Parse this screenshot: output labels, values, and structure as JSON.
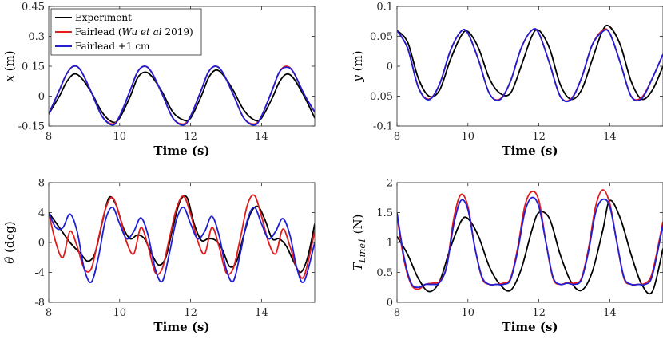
{
  "chart_data": [
    {
      "id": "x",
      "type": "line",
      "xlabel": "Time (s)",
      "ylabel_symbol": "x",
      "ylabel_unit": "(m)",
      "xlim": [
        8,
        15.5
      ],
      "ylim": [
        -0.15,
        0.45
      ],
      "xticks": [
        8,
        10,
        12,
        14
      ],
      "yticks": [
        -0.15,
        0,
        0.15,
        0.3,
        0.45
      ],
      "ytick_labels": [
        "-0.15",
        "0",
        "0.15",
        "0.3",
        "0.45"
      ],
      "series": [
        {
          "name": "Experiment",
          "color": "#000000",
          "x": [
            8.0,
            8.3,
            8.5,
            8.7,
            8.9,
            9.2,
            9.5,
            9.8,
            10.0,
            10.3,
            10.5,
            10.7,
            10.9,
            11.2,
            11.5,
            11.8,
            12.0,
            12.3,
            12.5,
            12.7,
            12.9,
            13.2,
            13.5,
            13.8,
            14.0,
            14.3,
            14.5,
            14.7,
            14.9,
            15.2,
            15.5
          ],
          "y": [
            -0.09,
            0.0,
            0.07,
            0.11,
            0.095,
            0.02,
            -0.08,
            -0.13,
            -0.11,
            0.0,
            0.09,
            0.12,
            0.1,
            0.02,
            -0.08,
            -0.12,
            -0.11,
            0.0,
            0.09,
            0.13,
            0.11,
            0.03,
            -0.07,
            -0.12,
            -0.11,
            -0.01,
            0.07,
            0.11,
            0.09,
            0.0,
            -0.11
          ]
        },
        {
          "name": "Fairlead (Wu et al 2019)",
          "color": "#e31a1c",
          "x": [
            8.0,
            8.3,
            8.5,
            8.7,
            8.9,
            9.2,
            9.5,
            9.8,
            10.0,
            10.3,
            10.5,
            10.7,
            10.9,
            11.2,
            11.5,
            11.8,
            12.0,
            12.3,
            12.5,
            12.7,
            12.9,
            13.2,
            13.5,
            13.8,
            14.0,
            14.3,
            14.5,
            14.7,
            14.9,
            15.2,
            15.5
          ],
          "y": [
            -0.09,
            0.03,
            0.11,
            0.15,
            0.13,
            0.02,
            -0.1,
            -0.14,
            -0.1,
            0.03,
            0.12,
            0.15,
            0.12,
            0.01,
            -0.11,
            -0.14,
            -0.1,
            0.03,
            0.12,
            0.15,
            0.12,
            0.01,
            -0.11,
            -0.14,
            -0.1,
            0.03,
            0.12,
            0.15,
            0.12,
            0.01,
            -0.08
          ]
        },
        {
          "name": "Fairlead +1 cm",
          "color": "#1f1fd6",
          "x": [
            8.0,
            8.3,
            8.5,
            8.7,
            8.9,
            9.2,
            9.5,
            9.8,
            10.0,
            10.3,
            10.5,
            10.7,
            10.9,
            11.2,
            11.5,
            11.8,
            12.0,
            12.3,
            12.5,
            12.7,
            12.9,
            13.2,
            13.5,
            13.8,
            14.0,
            14.3,
            14.5,
            14.7,
            14.9,
            15.2,
            15.5
          ],
          "y": [
            -0.09,
            0.03,
            0.11,
            0.15,
            0.13,
            0.02,
            -0.1,
            -0.145,
            -0.1,
            0.03,
            0.12,
            0.15,
            0.12,
            0.01,
            -0.11,
            -0.145,
            -0.1,
            0.03,
            0.12,
            0.15,
            0.12,
            0.01,
            -0.11,
            -0.145,
            -0.1,
            0.03,
            0.12,
            0.145,
            0.12,
            0.01,
            -0.08
          ]
        }
      ],
      "legend": {
        "placement": "top-left",
        "entries": [
          {
            "text": "Experiment",
            "color": "#000000"
          },
          {
            "text_pre": "Fairlead (",
            "text_italic": "Wu et al",
            "text_post": " 2019)",
            "color": "#e31a1c"
          },
          {
            "text": "Fairlead +1 cm",
            "color": "#1f1fd6"
          }
        ]
      }
    },
    {
      "id": "y",
      "type": "line",
      "xlabel": "Time (s)",
      "ylabel_symbol": "y",
      "ylabel_unit": "(m)",
      "xlim": [
        8,
        15.5
      ],
      "ylim": [
        -0.1,
        0.1
      ],
      "xticks": [
        8,
        10,
        12,
        14
      ],
      "yticks": [
        -0.1,
        -0.05,
        0,
        0.05,
        0.1
      ],
      "ytick_labels": [
        "-0.1",
        "-0.05",
        "0",
        "0.05",
        "0.1"
      ],
      "series": [
        {
          "name": "Experiment",
          "color": "#000000",
          "x": [
            8.0,
            8.3,
            8.6,
            8.9,
            9.2,
            9.5,
            9.8,
            10.0,
            10.3,
            10.6,
            10.9,
            11.2,
            11.5,
            11.8,
            12.0,
            12.3,
            12.6,
            12.9,
            13.2,
            13.5,
            13.8,
            14.0,
            14.3,
            14.6,
            14.9,
            15.2,
            15.5
          ],
          "y": [
            0.06,
            0.04,
            -0.02,
            -0.05,
            -0.04,
            0.01,
            0.05,
            0.058,
            0.03,
            -0.02,
            -0.045,
            -0.045,
            0.0,
            0.05,
            0.06,
            0.03,
            -0.03,
            -0.055,
            -0.04,
            0.01,
            0.06,
            0.066,
            0.035,
            -0.025,
            -0.055,
            -0.04,
            0.0
          ]
        },
        {
          "name": "Fairlead (Wu et al 2019)",
          "color": "#e31a1c",
          "x": [
            8.0,
            8.3,
            8.6,
            8.9,
            9.2,
            9.5,
            9.8,
            10.0,
            10.3,
            10.6,
            10.9,
            11.2,
            11.5,
            11.8,
            12.0,
            12.3,
            12.6,
            12.9,
            13.2,
            13.5,
            13.8,
            14.0,
            14.3,
            14.6,
            14.9,
            15.2,
            15.5
          ],
          "y": [
            0.06,
            0.03,
            -0.035,
            -0.055,
            -0.03,
            0.025,
            0.058,
            0.055,
            0.01,
            -0.045,
            -0.055,
            -0.025,
            0.03,
            0.06,
            0.055,
            0.005,
            -0.05,
            -0.055,
            -0.02,
            0.035,
            0.06,
            0.055,
            0.005,
            -0.05,
            -0.052,
            -0.02,
            0.02
          ]
        },
        {
          "name": "Fairlead +1 cm",
          "color": "#1f1fd6",
          "x": [
            8.0,
            8.3,
            8.6,
            8.9,
            9.2,
            9.5,
            9.8,
            10.0,
            10.3,
            10.6,
            10.9,
            11.2,
            11.5,
            11.8,
            12.0,
            12.3,
            12.6,
            12.9,
            13.2,
            13.5,
            13.8,
            14.0,
            14.3,
            14.6,
            14.9,
            15.2,
            15.5
          ],
          "y": [
            0.06,
            0.03,
            -0.035,
            -0.056,
            -0.03,
            0.025,
            0.058,
            0.055,
            0.01,
            -0.045,
            -0.056,
            -0.025,
            0.03,
            0.06,
            0.055,
            0.005,
            -0.05,
            -0.056,
            -0.02,
            0.035,
            0.058,
            0.055,
            0.005,
            -0.05,
            -0.054,
            -0.02,
            0.02
          ]
        }
      ]
    },
    {
      "id": "theta",
      "type": "line",
      "xlabel": "Time (s)",
      "ylabel_symbol": "θ",
      "ylabel_unit": "(deg)",
      "xlim": [
        8,
        15.5
      ],
      "ylim": [
        -8,
        8
      ],
      "xticks": [
        8,
        10,
        12,
        14
      ],
      "yticks": [
        -8,
        -4,
        0,
        4,
        8
      ],
      "ytick_labels": [
        "-8",
        "-4",
        "0",
        "4",
        "8"
      ],
      "series": [
        {
          "name": "Experiment",
          "color": "#000000",
          "x": [
            8.0,
            8.3,
            8.6,
            8.9,
            9.1,
            9.3,
            9.5,
            9.7,
            9.9,
            10.1,
            10.3,
            10.5,
            10.7,
            10.9,
            11.1,
            11.3,
            11.5,
            11.7,
            11.9,
            12.1,
            12.3,
            12.5,
            12.7,
            12.9,
            13.1,
            13.3,
            13.5,
            13.7,
            13.9,
            14.1,
            14.3,
            14.5,
            14.7,
            14.9,
            15.1,
            15.3,
            15.5
          ],
          "y": [
            4.0,
            2.0,
            0.0,
            -1.5,
            -2.5,
            -1.5,
            2.5,
            6.0,
            5.0,
            2.0,
            0.5,
            1.0,
            0.5,
            -1.5,
            -3.0,
            -2.0,
            2.0,
            5.5,
            6.0,
            2.5,
            0.3,
            0.5,
            0.3,
            -1.0,
            -3.2,
            -2.5,
            1.0,
            4.0,
            4.8,
            3.0,
            0.5,
            0.5,
            -0.5,
            -2.5,
            -4.0,
            -2.0,
            2.5
          ]
        },
        {
          "name": "Fairlead (Wu et al 2019)",
          "color": "#e31a1c",
          "x": [
            8.0,
            8.2,
            8.4,
            8.6,
            8.8,
            9.0,
            9.2,
            9.4,
            9.6,
            9.8,
            10.0,
            10.2,
            10.4,
            10.6,
            10.8,
            11.0,
            11.2,
            11.4,
            11.6,
            11.8,
            12.0,
            12.2,
            12.4,
            12.6,
            12.8,
            13.0,
            13.2,
            13.4,
            13.6,
            13.8,
            14.0,
            14.2,
            14.4,
            14.6,
            14.8,
            15.0,
            15.2,
            15.5
          ],
          "y": [
            4.0,
            0.0,
            -2.0,
            1.5,
            -0.5,
            -3.5,
            -3.5,
            0.5,
            4.5,
            6.0,
            3.5,
            0.0,
            -1.5,
            2.0,
            -0.5,
            -4.0,
            -3.5,
            0.5,
            4.5,
            6.2,
            3.8,
            0.2,
            -1.5,
            2.0,
            -0.5,
            -4.0,
            -3.5,
            0.5,
            5.0,
            6.3,
            3.5,
            0.0,
            -1.5,
            1.8,
            -0.5,
            -3.5,
            -4.5,
            1.5
          ]
        },
        {
          "name": "Fairlead +1 cm",
          "color": "#1f1fd6",
          "x": [
            8.0,
            8.2,
            8.4,
            8.6,
            8.8,
            9.0,
            9.2,
            9.4,
            9.6,
            9.8,
            10.0,
            10.2,
            10.4,
            10.6,
            10.8,
            11.0,
            11.2,
            11.4,
            11.6,
            11.8,
            12.0,
            12.2,
            12.4,
            12.6,
            12.8,
            13.0,
            13.2,
            13.4,
            13.6,
            13.8,
            14.0,
            14.2,
            14.4,
            14.6,
            14.8,
            15.0,
            15.2,
            15.5
          ],
          "y": [
            4.0,
            2.0,
            2.0,
            3.8,
            1.5,
            -3.5,
            -5.3,
            -2.0,
            3.0,
            4.7,
            2.5,
            0.5,
            1.5,
            3.3,
            1.0,
            -3.5,
            -5.2,
            -1.5,
            3.0,
            4.7,
            2.5,
            0.5,
            1.5,
            3.5,
            1.0,
            -3.5,
            -5.2,
            -1.5,
            3.0,
            4.7,
            2.5,
            0.5,
            1.5,
            3.2,
            1.0,
            -3.5,
            -5.2,
            0.0
          ]
        }
      ]
    },
    {
      "id": "tension",
      "type": "line",
      "xlabel": "Time (s)",
      "ylabel_symbol": "T",
      "ylabel_sub": "Line1",
      "ylabel_unit": "(N)",
      "xlim": [
        8,
        15.5
      ],
      "ylim": [
        0,
        2
      ],
      "xticks": [
        8,
        10,
        12,
        14
      ],
      "yticks": [
        0,
        0.5,
        1,
        1.5,
        2
      ],
      "ytick_labels": [
        "0",
        "0.5",
        "1",
        "1.5",
        "2"
      ],
      "series": [
        {
          "name": "Experiment",
          "color": "#000000",
          "x": [
            8.0,
            8.3,
            8.6,
            8.9,
            9.2,
            9.5,
            9.8,
            10.0,
            10.3,
            10.6,
            10.9,
            11.2,
            11.5,
            11.8,
            12.0,
            12.3,
            12.6,
            12.9,
            13.2,
            13.5,
            13.8,
            14.0,
            14.3,
            14.6,
            14.9,
            15.2,
            15.5
          ],
          "y": [
            1.1,
            0.8,
            0.4,
            0.18,
            0.35,
            0.9,
            1.35,
            1.4,
            1.1,
            0.6,
            0.3,
            0.2,
            0.55,
            1.2,
            1.5,
            1.4,
            0.8,
            0.35,
            0.2,
            0.5,
            1.2,
            1.7,
            1.4,
            0.8,
            0.3,
            0.18,
            0.9
          ]
        },
        {
          "name": "Fairlead (Wu et al 2019)",
          "color": "#e31a1c",
          "x": [
            8.0,
            8.2,
            8.4,
            8.6,
            8.8,
            9.0,
            9.2,
            9.4,
            9.6,
            9.8,
            10.0,
            10.2,
            10.4,
            10.6,
            10.8,
            11.0,
            11.2,
            11.4,
            11.6,
            11.8,
            12.0,
            12.2,
            12.4,
            12.6,
            12.8,
            13.0,
            13.2,
            13.4,
            13.6,
            13.8,
            14.0,
            14.2,
            14.4,
            14.6,
            14.8,
            15.0,
            15.2,
            15.5
          ],
          "y": [
            1.45,
            0.7,
            0.3,
            0.22,
            0.3,
            0.32,
            0.35,
            0.6,
            1.4,
            1.8,
            1.6,
            0.9,
            0.4,
            0.3,
            0.3,
            0.32,
            0.4,
            0.9,
            1.6,
            1.85,
            1.7,
            1.0,
            0.4,
            0.3,
            0.33,
            0.32,
            0.4,
            0.9,
            1.6,
            1.88,
            1.65,
            1.0,
            0.4,
            0.3,
            0.3,
            0.32,
            0.5,
            1.35
          ]
        },
        {
          "name": "Fairlead +1 cm",
          "color": "#1f1fd6",
          "x": [
            8.0,
            8.2,
            8.4,
            8.6,
            8.8,
            9.0,
            9.2,
            9.4,
            9.6,
            9.8,
            10.0,
            10.2,
            10.4,
            10.6,
            10.8,
            11.0,
            11.2,
            11.4,
            11.6,
            11.8,
            12.0,
            12.2,
            12.4,
            12.6,
            12.8,
            13.0,
            13.2,
            13.4,
            13.6,
            13.8,
            14.0,
            14.2,
            14.4,
            14.6,
            14.8,
            15.0,
            15.2,
            15.5
          ],
          "y": [
            1.5,
            0.75,
            0.32,
            0.25,
            0.3,
            0.3,
            0.33,
            0.6,
            1.3,
            1.7,
            1.55,
            0.9,
            0.42,
            0.3,
            0.3,
            0.3,
            0.38,
            0.85,
            1.5,
            1.75,
            1.6,
            1.0,
            0.42,
            0.3,
            0.32,
            0.3,
            0.38,
            0.85,
            1.5,
            1.72,
            1.6,
            1.0,
            0.42,
            0.3,
            0.3,
            0.3,
            0.45,
            1.3
          ]
        }
      ]
    }
  ]
}
